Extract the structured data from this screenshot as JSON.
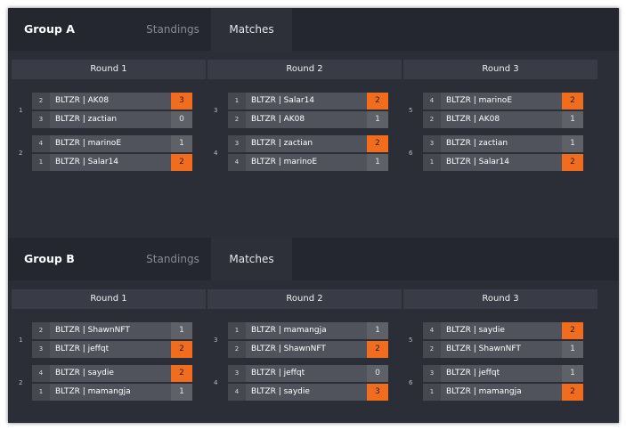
{
  "accent_color": "#f26c1e",
  "groups": [
    {
      "title": "Group A",
      "tabs": [
        "Standings",
        "Matches"
      ],
      "active_tab": "Matches",
      "rounds": [
        {
          "label": "Round 1",
          "matches": [
            {
              "number": "1",
              "players": [
                {
                  "seed": "2",
                  "name": "BLTZR | AK08",
                  "score": "3",
                  "winner": true
                },
                {
                  "seed": "3",
                  "name": "BLTZR | zactian",
                  "score": "0",
                  "winner": false
                }
              ]
            },
            {
              "number": "2",
              "players": [
                {
                  "seed": "4",
                  "name": "BLTZR | marinoE",
                  "score": "1",
                  "winner": false
                },
                {
                  "seed": "1",
                  "name": "BLTZR | Salar14",
                  "score": "2",
                  "winner": true
                }
              ]
            }
          ]
        },
        {
          "label": "Round 2",
          "matches": [
            {
              "number": "3",
              "players": [
                {
                  "seed": "1",
                  "name": "BLTZR | Salar14",
                  "score": "2",
                  "winner": true
                },
                {
                  "seed": "2",
                  "name": "BLTZR | AK08",
                  "score": "1",
                  "winner": false
                }
              ]
            },
            {
              "number": "4",
              "players": [
                {
                  "seed": "3",
                  "name": "BLTZR | zactian",
                  "score": "2",
                  "winner": true
                },
                {
                  "seed": "4",
                  "name": "BLTZR | marinoE",
                  "score": "1",
                  "winner": false
                }
              ]
            }
          ]
        },
        {
          "label": "Round 3",
          "matches": [
            {
              "number": "5",
              "players": [
                {
                  "seed": "4",
                  "name": "BLTZR | marinoE",
                  "score": "2",
                  "winner": true
                },
                {
                  "seed": "2",
                  "name": "BLTZR | AK08",
                  "score": "1",
                  "winner": false
                }
              ]
            },
            {
              "number": "6",
              "players": [
                {
                  "seed": "3",
                  "name": "BLTZR | zactian",
                  "score": "1",
                  "winner": false
                },
                {
                  "seed": "1",
                  "name": "BLTZR | Salar14",
                  "score": "2",
                  "winner": true
                }
              ]
            }
          ]
        }
      ]
    },
    {
      "title": "Group B",
      "tabs": [
        "Standings",
        "Matches"
      ],
      "active_tab": "Matches",
      "rounds": [
        {
          "label": "Round 1",
          "matches": [
            {
              "number": "1",
              "players": [
                {
                  "seed": "2",
                  "name": "BLTZR | ShawnNFT",
                  "score": "1",
                  "winner": false
                },
                {
                  "seed": "3",
                  "name": "BLTZR | jeffqt",
                  "score": "2",
                  "winner": true
                }
              ]
            },
            {
              "number": "2",
              "players": [
                {
                  "seed": "4",
                  "name": "BLTZR | saydie",
                  "score": "2",
                  "winner": true
                },
                {
                  "seed": "1",
                  "name": "BLTZR | mamangja",
                  "score": "1",
                  "winner": false
                }
              ]
            }
          ]
        },
        {
          "label": "Round 2",
          "matches": [
            {
              "number": "3",
              "players": [
                {
                  "seed": "1",
                  "name": "BLTZR | mamangja",
                  "score": "1",
                  "winner": false
                },
                {
                  "seed": "2",
                  "name": "BLTZR | ShawnNFT",
                  "score": "2",
                  "winner": true
                }
              ]
            },
            {
              "number": "4",
              "players": [
                {
                  "seed": "3",
                  "name": "BLTZR | jeffqt",
                  "score": "0",
                  "winner": false
                },
                {
                  "seed": "4",
                  "name": "BLTZR | saydie",
                  "score": "3",
                  "winner": true
                }
              ]
            }
          ]
        },
        {
          "label": "Round 3",
          "matches": [
            {
              "number": "5",
              "players": [
                {
                  "seed": "4",
                  "name": "BLTZR | saydie",
                  "score": "2",
                  "winner": true
                },
                {
                  "seed": "2",
                  "name": "BLTZR | ShawnNFT",
                  "score": "1",
                  "winner": false
                }
              ]
            },
            {
              "number": "6",
              "players": [
                {
                  "seed": "3",
                  "name": "BLTZR | jeffqt",
                  "score": "1",
                  "winner": false
                },
                {
                  "seed": "1",
                  "name": "BLTZR | mamangja",
                  "score": "2",
                  "winner": true
                }
              ]
            }
          ]
        }
      ]
    }
  ]
}
